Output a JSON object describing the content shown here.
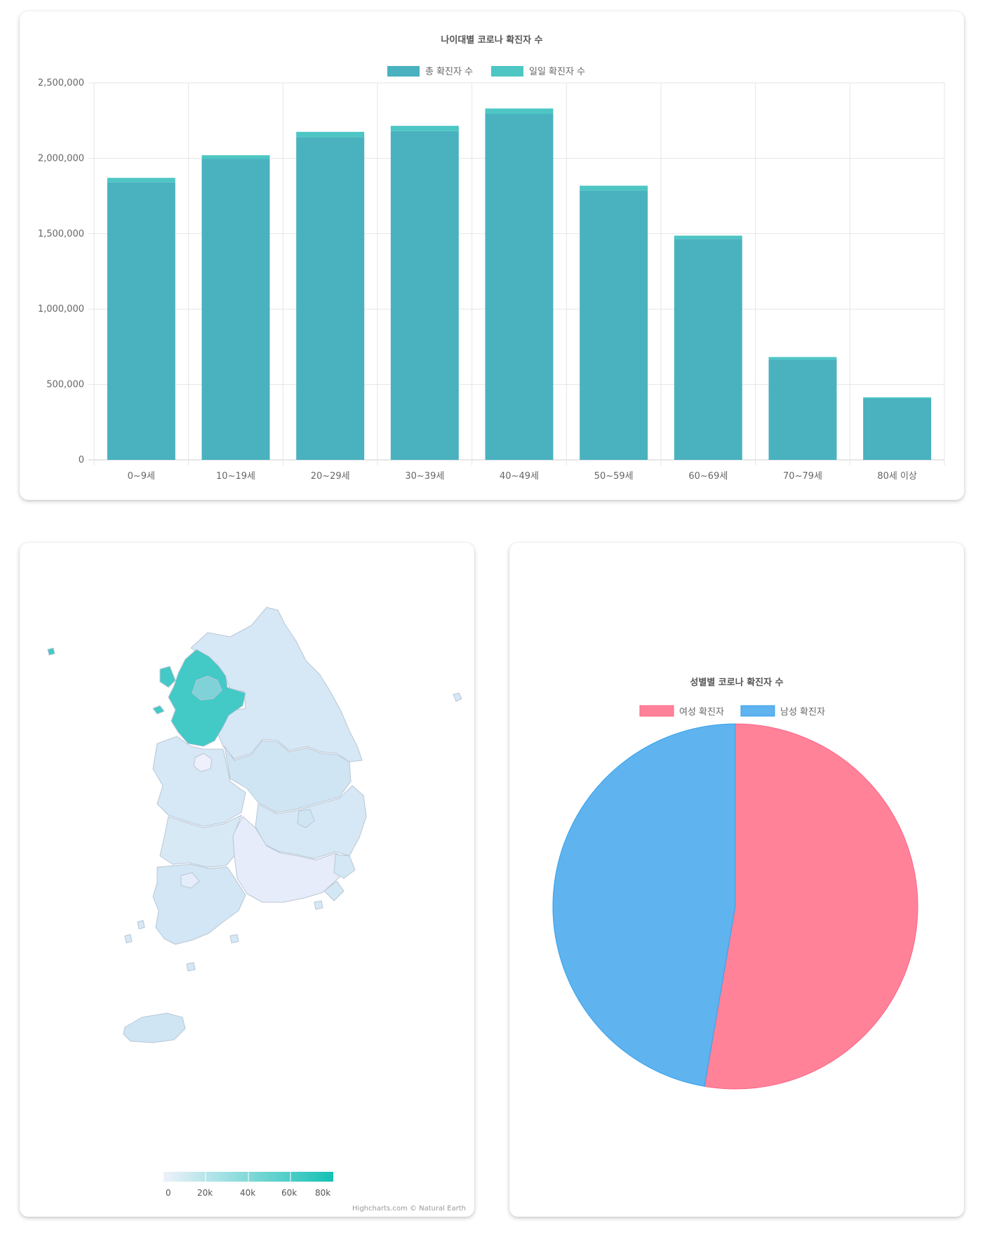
{
  "bar_chart": {
    "title": "나이대별 코로나 확진자 수",
    "legend": [
      {
        "label": "총 확진자 수",
        "color": "#4ab1bf"
      },
      {
        "label": "일일 확진자 수",
        "color": "#4dc6c4"
      }
    ],
    "y_ticks": [
      "0",
      "500,000",
      "1,000,000",
      "1,500,000",
      "2,000,000",
      "2,500,000"
    ]
  },
  "pie_chart": {
    "title": "성별별 코로나 확진자 수",
    "legend": [
      {
        "label": "여성 확진자",
        "color": "#ff8299"
      },
      {
        "label": "남성 확진자",
        "color": "#5fb3ee"
      }
    ]
  },
  "map": {
    "colorscale_ticks": [
      "0",
      "20k",
      "40k",
      "60k",
      "80k"
    ],
    "colors": {
      "low": "#e9effb",
      "high": "#15c1b5",
      "default": "#d5e9f6",
      "highlight": "#43c9c6"
    },
    "credit": "Highcharts.com © Natural Earth"
  },
  "chart_data": [
    {
      "type": "bar",
      "title": "나이대별 코로나 확진자 수",
      "categories": [
        "0~9세",
        "10~19세",
        "20~29세",
        "30~39세",
        "40~49세",
        "50~59세",
        "60~69세",
        "70~79세",
        "80세 이상"
      ],
      "series": [
        {
          "name": "총 확진자 수",
          "values": [
            1840000,
            1995000,
            2140000,
            2180000,
            2295000,
            1785000,
            1465000,
            665000,
            405000
          ]
        },
        {
          "name": "일일 확진자 수",
          "values": [
            30000,
            25000,
            35000,
            35000,
            35000,
            33000,
            22000,
            17000,
            10000
          ]
        }
      ],
      "stacked": true,
      "ylim": [
        0,
        2500000
      ],
      "grid": true,
      "legend": "top"
    },
    {
      "type": "pie",
      "title": "성별별 코로나 확진자 수",
      "labels": [
        "여성 확진자",
        "남성 확진자"
      ],
      "values": [
        52.7,
        47.3
      ],
      "legend": "top"
    }
  ]
}
